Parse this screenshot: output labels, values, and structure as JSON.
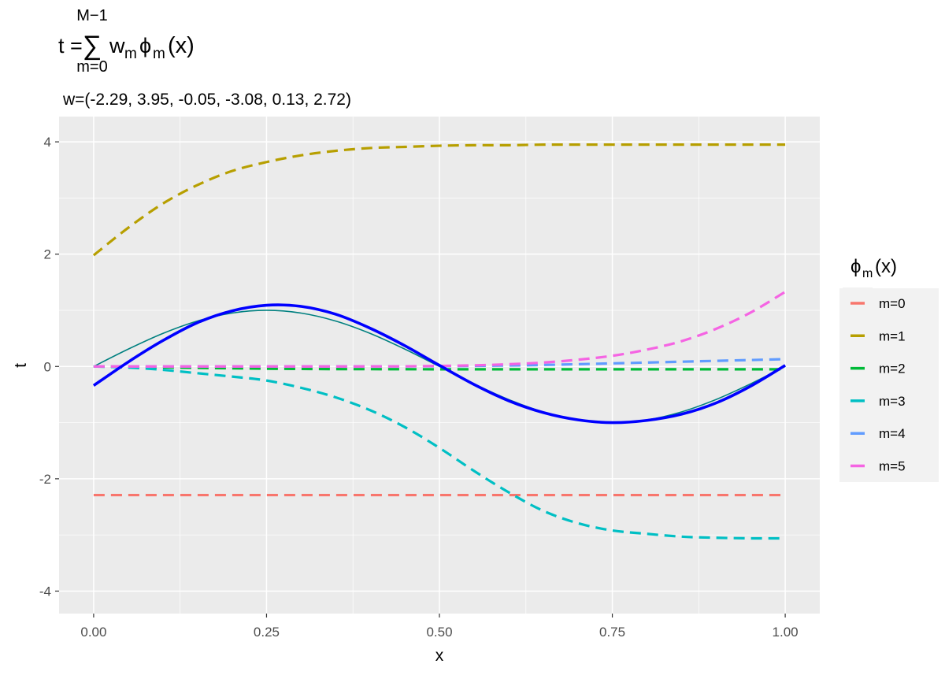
{
  "chart_data": {
    "type": "line",
    "title": {
      "lhs": "t =",
      "sum_top": "M−1",
      "sum_symbol": "∑",
      "sum_bottom": "m=0",
      "w": "w",
      "w_sub": "m",
      "phi": "ϕ",
      "phi_sub": "m",
      "arg": "(x)"
    },
    "subtitle": "w=(-2.29, 3.95, -0.05, -3.08, 0.13, 2.72)",
    "xlabel": "x",
    "ylabel": "t",
    "xlim": [
      -0.05,
      1.05
    ],
    "ylim": [
      -4.4,
      4.45
    ],
    "xticks": [
      0,
      0.25,
      0.5,
      0.75,
      1
    ],
    "xtick_labels": [
      "0.00",
      "0.25",
      "0.50",
      "0.75",
      "1.00"
    ],
    "yticks": [
      -4,
      -2,
      0,
      2,
      4
    ],
    "ytick_labels": [
      "-4",
      "-2",
      "0",
      "2",
      "4"
    ],
    "grid": true,
    "legend": {
      "title": {
        "phi": "ϕ",
        "sub": "m",
        "arg": "(x)"
      },
      "position": "right"
    },
    "x": [
      0,
      0.05,
      0.1,
      0.15,
      0.2,
      0.25,
      0.3,
      0.35,
      0.4,
      0.45,
      0.5,
      0.55,
      0.6,
      0.65,
      0.7,
      0.75,
      0.8,
      0.85,
      0.9,
      0.95,
      1.0
    ],
    "series": [
      {
        "name": "m=0",
        "color": "#F8766D",
        "dashed": true,
        "values": [
          -2.29,
          -2.29,
          -2.29,
          -2.29,
          -2.29,
          -2.29,
          -2.29,
          -2.29,
          -2.29,
          -2.29,
          -2.29,
          -2.29,
          -2.29,
          -2.29,
          -2.29,
          -2.29,
          -2.29,
          -2.29,
          -2.29,
          -2.29,
          -2.29
        ]
      },
      {
        "name": "m=1",
        "color": "#B79F00",
        "dashed": true,
        "values": [
          1.98,
          2.47,
          2.9,
          3.23,
          3.48,
          3.64,
          3.76,
          3.84,
          3.89,
          3.91,
          3.93,
          3.94,
          3.94,
          3.95,
          3.95,
          3.95,
          3.95,
          3.95,
          3.95,
          3.95,
          3.95
        ]
      },
      {
        "name": "m=2",
        "color": "#00BA38",
        "dashed": true,
        "values": [
          0.0,
          -0.005,
          -0.015,
          -0.025,
          -0.033,
          -0.04,
          -0.044,
          -0.047,
          -0.048,
          -0.049,
          -0.05,
          -0.05,
          -0.05,
          -0.05,
          -0.05,
          -0.05,
          -0.05,
          -0.05,
          -0.05,
          -0.05,
          -0.05
        ]
      },
      {
        "name": "m=3",
        "color": "#00BFC4",
        "dashed": true,
        "values": [
          0.0,
          -0.02,
          -0.06,
          -0.12,
          -0.18,
          -0.25,
          -0.38,
          -0.55,
          -0.78,
          -1.08,
          -1.45,
          -1.86,
          -2.24,
          -2.57,
          -2.79,
          -2.92,
          -2.98,
          -3.03,
          -3.05,
          -3.06,
          -3.06
        ]
      },
      {
        "name": "m=4",
        "color": "#619CFF",
        "dashed": true,
        "values": [
          0.0,
          0.0,
          0.0,
          0.0,
          0.0,
          0.0,
          0.0,
          0.0,
          0.001,
          0.002,
          0.005,
          0.01,
          0.017,
          0.027,
          0.04,
          0.055,
          0.07,
          0.085,
          0.1,
          0.115,
          0.13
        ]
      },
      {
        "name": "m=5",
        "color": "#F564E3",
        "dashed": true,
        "values": [
          0.0,
          0.0,
          0.0,
          0.0,
          0.0,
          0.0,
          0.0,
          0.0,
          0.001,
          0.003,
          0.01,
          0.02,
          0.04,
          0.07,
          0.12,
          0.19,
          0.3,
          0.45,
          0.67,
          0.96,
          1.33
        ]
      }
    ],
    "target_curve": {
      "color": "#008080",
      "values": [
        0.0,
        0.309,
        0.588,
        0.809,
        0.951,
        1.0,
        0.951,
        0.809,
        0.588,
        0.309,
        0.0,
        -0.309,
        -0.588,
        -0.809,
        -0.951,
        -1.0,
        -0.951,
        -0.809,
        -0.588,
        -0.309,
        0.0
      ]
    },
    "fit_curve": {
      "color": "#0000FF",
      "values": [
        -0.34,
        0.08,
        0.46,
        0.78,
        0.99,
        1.09,
        1.07,
        0.93,
        0.68,
        0.37,
        0.02,
        -0.32,
        -0.61,
        -0.82,
        -0.95,
        -1.0,
        -0.96,
        -0.85,
        -0.65,
        -0.35,
        0.02
      ]
    }
  }
}
